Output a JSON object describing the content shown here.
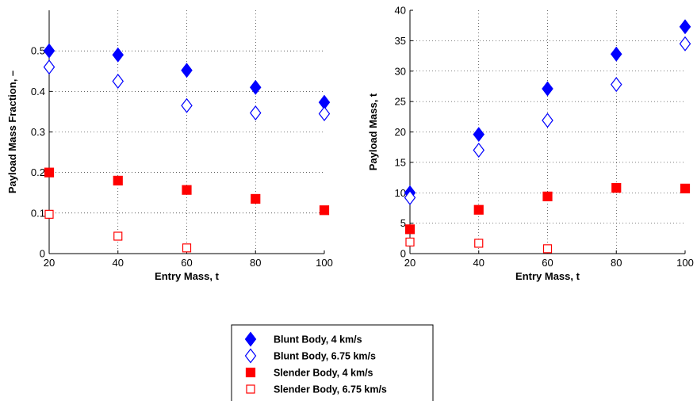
{
  "colors": {
    "blue": "#0000ff",
    "red": "#ff0000",
    "axis": "#000000",
    "grid": "#000000"
  },
  "legend": {
    "placement": "bottom-center",
    "entries": [
      {
        "label": "Blunt Body, 4 km/s",
        "marker": "diamond",
        "filled": true,
        "color": "#0000ff"
      },
      {
        "label": "Blunt Body, 6.75 km/s",
        "marker": "diamond",
        "filled": false,
        "color": "#0000ff"
      },
      {
        "label": "Slender Body, 4 km/s",
        "marker": "square",
        "filled": true,
        "color": "#ff0000"
      },
      {
        "label": "Slender Body, 6.75 km/s",
        "marker": "square",
        "filled": false,
        "color": "#ff0000"
      }
    ]
  },
  "chart_data": [
    {
      "type": "scatter",
      "xlabel": "Entry Mass, t",
      "ylabel": "Payload Mass Fraction, –",
      "xlim": [
        20,
        100
      ],
      "ylim": [
        0,
        0.6
      ],
      "xticks": [
        20,
        40,
        60,
        80,
        100
      ],
      "yticks": [
        0,
        0.1,
        0.2,
        0.3,
        0.4,
        0.5
      ],
      "ytick_labels": [
        "0",
        "0.1",
        "0.2",
        "0.3",
        "0.4",
        "0.5"
      ],
      "grid": true,
      "x": [
        20,
        40,
        60,
        80,
        100
      ],
      "series": [
        {
          "name": "Blunt Body, 4 km/s",
          "values": [
            0.5,
            0.49,
            0.452,
            0.41,
            0.373
          ]
        },
        {
          "name": "Blunt Body, 6.75 km/s",
          "values": [
            0.46,
            0.425,
            0.365,
            0.347,
            0.345
          ]
        },
        {
          "name": "Slender Body, 4 km/s",
          "values": [
            0.2,
            0.18,
            0.157,
            0.135,
            0.107
          ]
        },
        {
          "name": "Slender Body, 6.75 km/s",
          "values": [
            0.097,
            0.043,
            0.014,
            null,
            null
          ]
        }
      ]
    },
    {
      "type": "scatter",
      "xlabel": "Entry Mass, t",
      "ylabel": "Payload Mass, t",
      "xlim": [
        20,
        100
      ],
      "ylim": [
        0,
        40
      ],
      "xticks": [
        20,
        40,
        60,
        80,
        100
      ],
      "yticks": [
        0,
        5,
        10,
        15,
        20,
        25,
        30,
        35,
        40
      ],
      "ytick_labels": [
        "0",
        "5",
        "10",
        "15",
        "20",
        "25",
        "30",
        "35",
        "40"
      ],
      "grid": true,
      "x": [
        20,
        40,
        60,
        80,
        100
      ],
      "series": [
        {
          "name": "Blunt Body, 4 km/s",
          "values": [
            10.0,
            19.6,
            27.1,
            32.8,
            37.3
          ]
        },
        {
          "name": "Blunt Body, 6.75 km/s",
          "values": [
            9.2,
            17.0,
            21.9,
            27.8,
            34.5
          ]
        },
        {
          "name": "Slender Body, 4 km/s",
          "values": [
            4.0,
            7.2,
            9.4,
            10.8,
            10.7
          ]
        },
        {
          "name": "Slender Body, 6.75 km/s",
          "values": [
            1.9,
            1.7,
            0.8,
            null,
            null
          ]
        }
      ]
    }
  ]
}
